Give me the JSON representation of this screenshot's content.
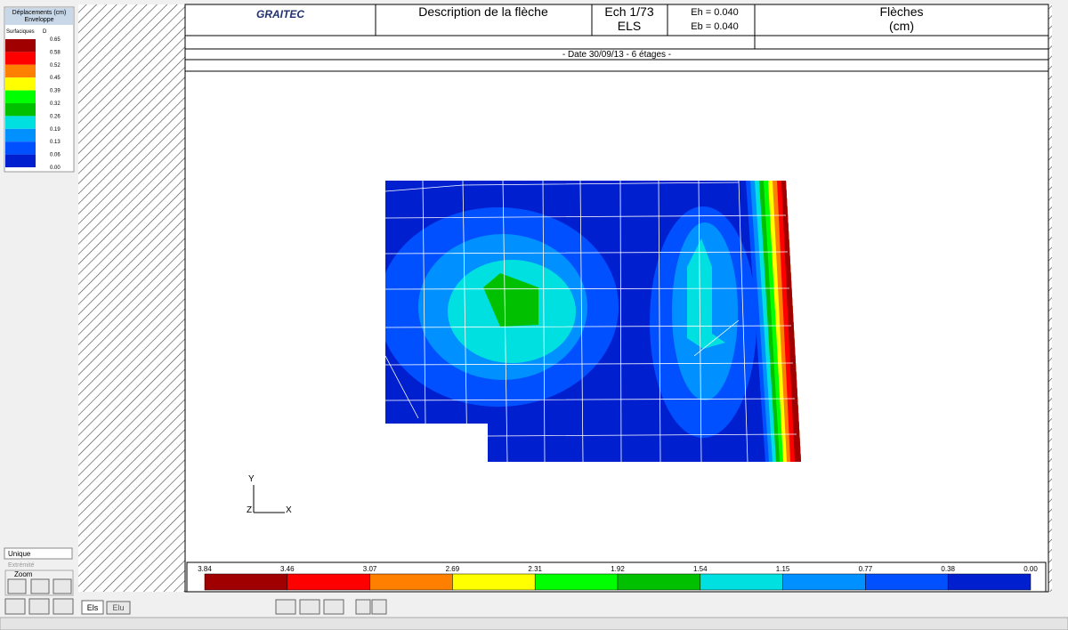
{
  "legend": {
    "title": "Déplacements (cm)",
    "subtitle": "Enveloppe",
    "header_left": "Surfaciques",
    "header_right": "D",
    "values": [
      "0.65",
      "0.58",
      "0.52",
      "0.45",
      "0.39",
      "0.32",
      "0.26",
      "0.19",
      "0.13",
      "0.06",
      "0.00"
    ]
  },
  "colors": [
    "#a00000",
    "#ff0000",
    "#ff8000",
    "#ffff00",
    "#00ff00",
    "#00c000",
    "#00e0e0",
    "#0090ff",
    "#0050ff",
    "#0020d0"
  ],
  "header": {
    "logo": "GRAITEC",
    "description": "Description de la flèche",
    "scale": "Ech 1/73",
    "state": "ELS",
    "eh": "Eh = 0.040",
    "eb": "Eb = 0.040",
    "result": "Flèches",
    "unit": "(cm)",
    "date": "- Date 30/09/13 - 6 étages -"
  },
  "axes": {
    "y": "Y",
    "z": "Z",
    "x": "X"
  },
  "colorbar": {
    "values": [
      "3.84",
      "3.46",
      "3.07",
      "2.69",
      "2.31",
      "1.92",
      "1.54",
      "1.15",
      "0.77",
      "0.38",
      "0.00"
    ]
  },
  "panel": {
    "mode": "Unique",
    "extremity": "Extrémité",
    "zoom": "Zoom"
  },
  "toolbar": {
    "els": "Els",
    "elu": "Elu"
  }
}
